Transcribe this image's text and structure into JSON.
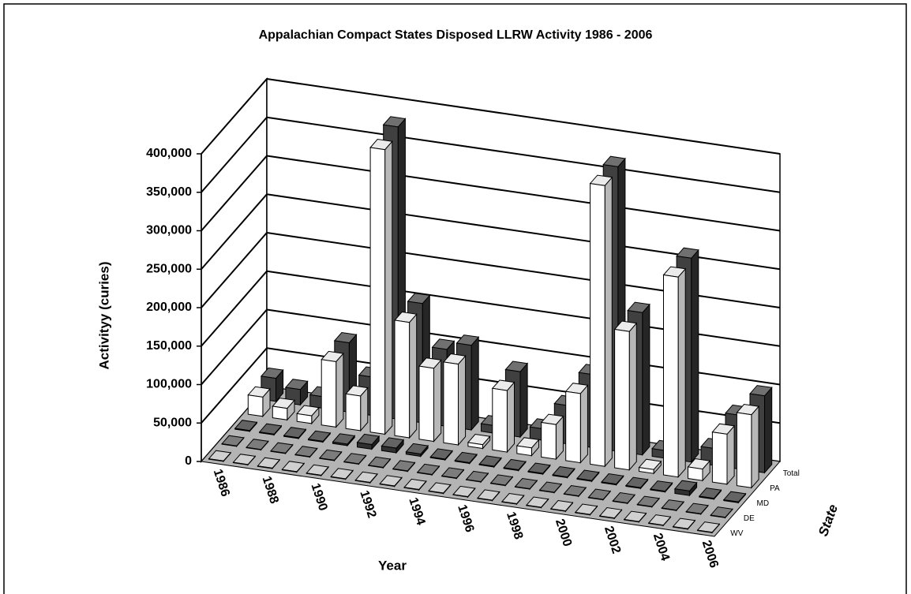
{
  "chart_data": {
    "type": "bar3d",
    "title": "Appalachian Compact States Disposed LLRW Activity 1986 - 2006",
    "y_label": "Activityy (curies)",
    "x_label": "Year",
    "z_label": "State",
    "categories": [
      "1986",
      null,
      "1988",
      null,
      "1990",
      null,
      "1992",
      null,
      "1994",
      null,
      "1996",
      null,
      "1998",
      null,
      "2000",
      null,
      "2002",
      null,
      "2004",
      null,
      "2006"
    ],
    "series": [
      {
        "name": "WV",
        "color": "#c0c0c0",
        "values": [
          500,
          500,
          500,
          500,
          500,
          500,
          500,
          500,
          500,
          500,
          500,
          500,
          500,
          500,
          500,
          500,
          500,
          500,
          500,
          500,
          500
        ]
      },
      {
        "name": "DE",
        "color": "#505050",
        "values": [
          500,
          500,
          500,
          500,
          500,
          500,
          500,
          500,
          500,
          500,
          500,
          500,
          500,
          500,
          500,
          500,
          500,
          500,
          500,
          500,
          500
        ]
      },
      {
        "name": "MD",
        "color": "#303030",
        "values": [
          1000,
          1000,
          1000,
          1000,
          2000,
          6000,
          6000,
          3000,
          1000,
          1000,
          1000,
          1000,
          1000,
          1000,
          1000,
          1000,
          1000,
          1000,
          6000,
          1000,
          1000
        ]
      },
      {
        "name": "PA",
        "color": "#ffffff",
        "values": [
          25000,
          15000,
          10000,
          85000,
          45000,
          370000,
          150000,
          95000,
          105000,
          5000,
          80000,
          10000,
          45000,
          90000,
          365000,
          180000,
          5000,
          260000,
          15000,
          65000,
          95000
        ]
      },
      {
        "name": "Total",
        "color": "#404040",
        "values": [
          30000,
          20000,
          15000,
          90000,
          50000,
          380000,
          155000,
          100000,
          110000,
          10000,
          85000,
          15000,
          50000,
          95000,
          370000,
          185000,
          10000,
          265000,
          22000,
          70000,
          100000
        ]
      }
    ],
    "ylim": [
      0,
      400000
    ],
    "yticks": [
      0,
      {
        "value": 50000,
        "label": "50,000"
      },
      {
        "value": 100000,
        "label": "100,000"
      },
      {
        "value": 150000,
        "label": "150,000"
      },
      {
        "value": 200000,
        "label": "200,000"
      },
      {
        "value": 250000,
        "label": "250,000"
      },
      {
        "value": 300000,
        "label": "300,000"
      },
      {
        "value": 350000,
        "label": "350,000"
      },
      {
        "value": 400000,
        "label": "400,000"
      }
    ],
    "grid": true
  }
}
